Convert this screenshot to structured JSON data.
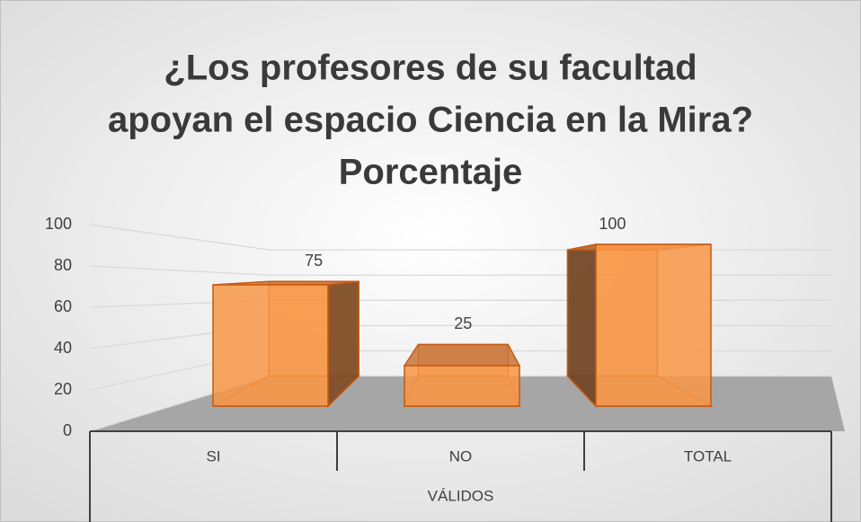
{
  "chart_data": {
    "type": "bar3d",
    "title": [
      "¿Los profesores de su facultad",
      "apoyan el espacio Ciencia en la Mira?",
      "Porcentaje"
    ],
    "categories": [
      "SI",
      "NO",
      "TOTAL"
    ],
    "category_group": "VÁLIDOS",
    "values": [
      75,
      25,
      100
    ],
    "color": "#f79646",
    "ylim": [
      0,
      100
    ],
    "yticks": [
      0,
      20,
      40,
      60,
      80,
      100
    ],
    "grid": true
  }
}
